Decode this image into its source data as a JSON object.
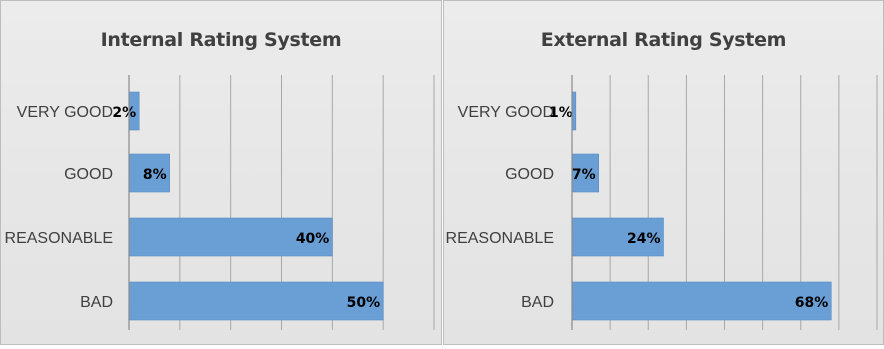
{
  "colors": {
    "bar": "#6a9fd6",
    "bar_edge": "#5a8cc4",
    "grid": "#a8a8a8",
    "axis": "#8a8a8a"
  },
  "chart_data": [
    {
      "type": "bar",
      "orientation": "horizontal",
      "title": "Internal Rating System",
      "categories": [
        "VERY GOOD",
        "GOOD",
        "REASONABLE",
        "BAD"
      ],
      "values": [
        2,
        8,
        40,
        50
      ],
      "value_labels": [
        "2%",
        "8%",
        "40%",
        "50%"
      ],
      "unit": "%",
      "xlim": [
        0,
        60
      ],
      "gridlines": "vertical",
      "legend": "none"
    },
    {
      "type": "bar",
      "orientation": "horizontal",
      "title": "External Rating System",
      "categories": [
        "VERY GOOD",
        "GOOD",
        "REASONABLE",
        "BAD"
      ],
      "values": [
        1,
        7,
        24,
        68
      ],
      "value_labels": [
        "1%",
        "7%",
        "24%",
        "68%"
      ],
      "unit": "%",
      "xlim": [
        0,
        80
      ],
      "gridlines": "vertical",
      "legend": "none"
    }
  ]
}
